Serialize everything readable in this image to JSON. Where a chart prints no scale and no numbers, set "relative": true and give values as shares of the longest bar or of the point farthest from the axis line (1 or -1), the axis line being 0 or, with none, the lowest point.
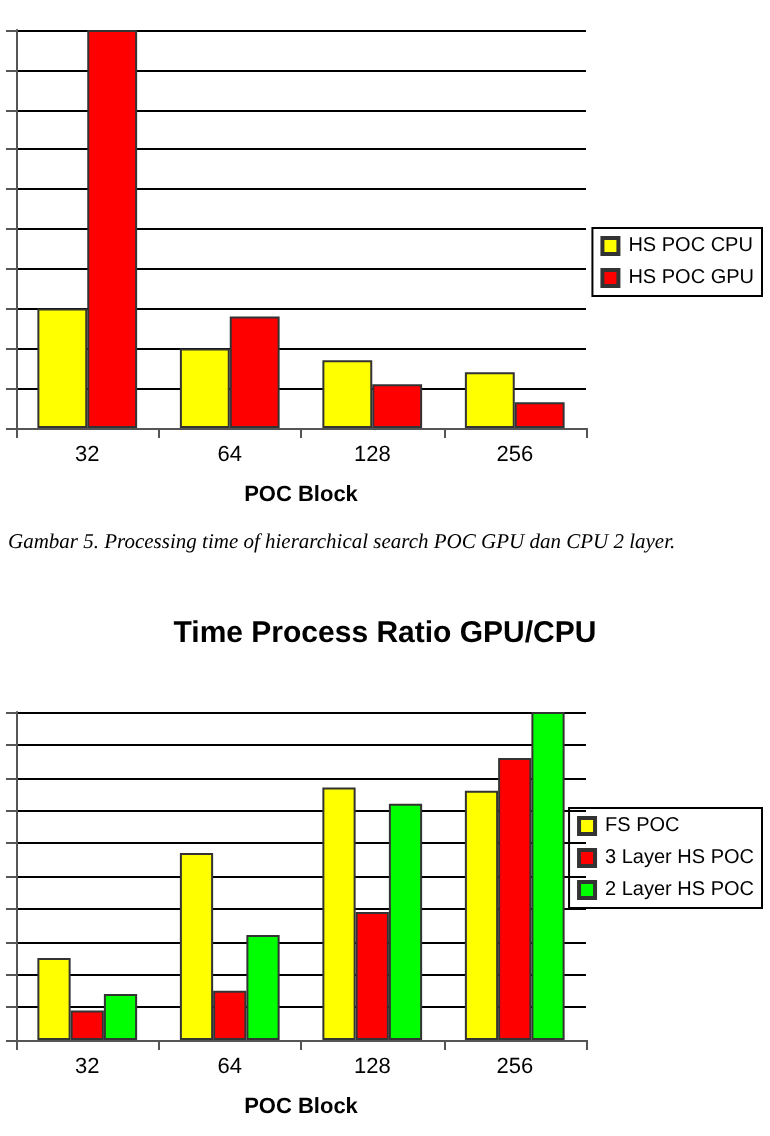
{
  "chart_data": [
    {
      "type": "bar",
      "xlabel": "POC Block",
      "categories": [
        "32",
        "64",
        "128",
        "256"
      ],
      "relative": true,
      "grid": "y",
      "legend": "right",
      "series": [
        {
          "name": "HS POC CPU",
          "color": "#ffff00",
          "values": [
            0.3,
            0.2,
            0.17,
            0.14
          ]
        },
        {
          "name": "HS POC GPU",
          "color": "#ff0000",
          "values": [
            1,
            0.28,
            0.11,
            0.065
          ]
        }
      ],
      "annotations": [
        "Gambar 5.  Processing time of hierarchical search POC GPU dan CPU 2 layer."
      ]
    },
    {
      "type": "bar",
      "title": "Time Process Ratio GPU/CPU",
      "xlabel": "POC Block",
      "categories": [
        "32",
        "64",
        "128",
        "256"
      ],
      "relative": true,
      "grid": "y",
      "legend": "right",
      "series": [
        {
          "name": "FS POC",
          "color": "#ffff00",
          "values": [
            0.25,
            0.57,
            0.77,
            0.76
          ]
        },
        {
          "name": "3 Layer HS POC",
          "color": "#ff0000",
          "values": [
            0.09,
            0.15,
            0.39,
            0.86
          ]
        },
        {
          "name": "2 Layer HS POC",
          "color": "#00ff00",
          "values": [
            0.14,
            0.32,
            0.72,
            1
          ]
        }
      ]
    }
  ]
}
